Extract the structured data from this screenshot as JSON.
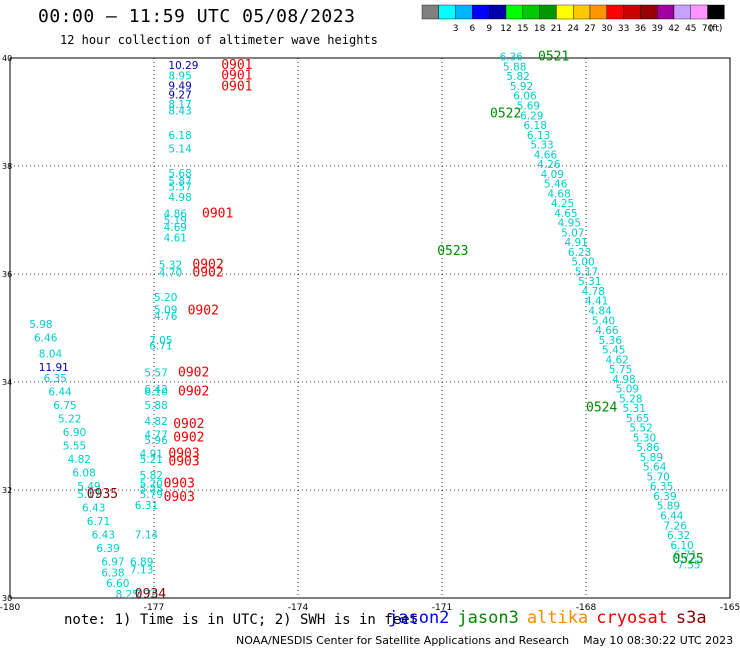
{
  "header": {
    "title": "00:00 — 11:59 UTC 05/08/2023",
    "subtitle": "12 hour collection of altimeter wave heights"
  },
  "colorbar": {
    "unit": "(ft)",
    "steps": [
      {
        "color": "#808080",
        "label": ""
      },
      {
        "color": "#00ffff",
        "label": "3"
      },
      {
        "color": "#00b4ff",
        "label": "6"
      },
      {
        "color": "#0000ff",
        "label": "9"
      },
      {
        "color": "#0000aa",
        "label": "12"
      },
      {
        "color": "#00ff00",
        "label": "15"
      },
      {
        "color": "#00c800",
        "label": "18"
      },
      {
        "color": "#009600",
        "label": "21"
      },
      {
        "color": "#ffff00",
        "label": "24"
      },
      {
        "color": "#ffc800",
        "label": "27"
      },
      {
        "color": "#ff9600",
        "label": "30"
      },
      {
        "color": "#ff0000",
        "label": "33"
      },
      {
        "color": "#c80000",
        "label": "36"
      },
      {
        "color": "#960000",
        "label": "39"
      },
      {
        "color": "#a000a0",
        "label": "42"
      },
      {
        "color": "#c8a0ff",
        "label": "45"
      },
      {
        "color": "#ff96ff",
        "label": "70"
      },
      {
        "color": "#000000",
        "label": ""
      }
    ]
  },
  "map": {
    "lon_range": [
      -180,
      -165
    ],
    "lat_range": [
      30,
      40
    ],
    "lon_ticks": [
      "-180",
      "-177",
      "-174",
      "-171",
      "-168",
      "-165"
    ],
    "lat_ticks": [
      "30",
      "32",
      "34",
      "36",
      "38",
      "40"
    ],
    "tracks": [
      {
        "satellite": "jason3",
        "color": "#00cccc",
        "lon": [
          -169.8,
          -169.4,
          -169.0,
          -168.6,
          -168.2,
          -167.8,
          -167.4,
          -167.0
        ],
        "values": [
          "6.36",
          "5.88",
          "5.82",
          "5.92",
          "6.06",
          "5.69",
          "6.29",
          "6.18",
          "6.13",
          "5.33",
          "4.66",
          "4.26",
          "4.09",
          "5.46",
          "4.68",
          "4.25",
          "4.65",
          "4.95",
          "5.07",
          "4.91",
          "6.23",
          "5.00",
          "5.17",
          "5.31",
          "4.78",
          "4.41",
          "4.84",
          "5.40",
          "4.66",
          "5.36",
          "5.45",
          "4.62",
          "5.75",
          "4.98",
          "5.09",
          "5.28",
          "5.31",
          "5.65",
          "5.52",
          "5.30",
          "5.86",
          "5.89",
          "5.64",
          "5.70",
          "6.35",
          "6.39",
          "5.89",
          "6.44",
          "7.26",
          "6.32",
          "6.10",
          "6.71",
          "7.55"
        ]
      }
    ],
    "track_labels": [
      {
        "text": "0521",
        "color": "#008800",
        "lon": -169.0,
        "lat": 39.95
      },
      {
        "text": "0522",
        "color": "#008800",
        "lon": -170.0,
        "lat": 38.9
      },
      {
        "text": "0523",
        "color": "#008800",
        "lon": -171.1,
        "lat": 36.35
      },
      {
        "text": "0524",
        "color": "#008800",
        "lon": -168.0,
        "lat": 33.45
      },
      {
        "text": "0525",
        "color": "#008800",
        "lon": -166.2,
        "lat": 30.65
      },
      {
        "text": "0901",
        "color": "#ee0000",
        "lon": -175.6,
        "lat": 39.8
      },
      {
        "text": "0901",
        "color": "#ee0000",
        "lon": -175.6,
        "lat": 39.6
      },
      {
        "text": "0901",
        "color": "#ee0000",
        "lon": -175.6,
        "lat": 39.4
      },
      {
        "text": "0901",
        "color": "#ee0000",
        "lon": -176.0,
        "lat": 37.05
      },
      {
        "text": "0902",
        "color": "#ee0000",
        "lon": -176.2,
        "lat": 36.1
      },
      {
        "text": "0902",
        "color": "#ee0000",
        "lon": -176.2,
        "lat": 35.95
      },
      {
        "text": "0902",
        "color": "#ee0000",
        "lon": -176.3,
        "lat": 35.25
      },
      {
        "text": "0902",
        "color": "#ee0000",
        "lon": -176.5,
        "lat": 34.1
      },
      {
        "text": "0902",
        "color": "#ee0000",
        "lon": -176.5,
        "lat": 33.75
      },
      {
        "text": "0902",
        "color": "#ee0000",
        "lon": -176.6,
        "lat": 33.15
      },
      {
        "text": "0902",
        "color": "#ee0000",
        "lon": -176.6,
        "lat": 32.9
      },
      {
        "text": "0903",
        "color": "#ee0000",
        "lon": -176.7,
        "lat": 32.6
      },
      {
        "text": "0903",
        "color": "#ee0000",
        "lon": -176.7,
        "lat": 32.45
      },
      {
        "text": "0903",
        "color": "#ee0000",
        "lon": -176.8,
        "lat": 32.05
      },
      {
        "text": "0903",
        "color": "#ee0000",
        "lon": -176.8,
        "lat": 31.8
      },
      {
        "text": "0935",
        "color": "#880000",
        "lon": -178.4,
        "lat": 31.85
      },
      {
        "text": "0934",
        "color": "#880000",
        "lon": -177.4,
        "lat": 30.0
      }
    ],
    "values": [
      {
        "text": "10.29",
        "color": "#0000aa",
        "lon": -176.7,
        "lat": 39.8
      },
      {
        "text": "8.95",
        "color": "#00cccc",
        "lon": -176.7,
        "lat": 39.6
      },
      {
        "text": "9.49",
        "color": "#0000aa",
        "lon": -176.7,
        "lat": 39.42
      },
      {
        "text": "9.27",
        "color": "#0000aa",
        "lon": -176.7,
        "lat": 39.25
      },
      {
        "text": "8.17",
        "color": "#00cccc",
        "lon": -176.7,
        "lat": 39.07
      },
      {
        "text": "8.43",
        "color": "#00cccc",
        "lon": -176.7,
        "lat": 38.95
      },
      {
        "text": "6.18",
        "color": "#00cccc",
        "lon": -176.7,
        "lat": 38.5
      },
      {
        "text": "5.14",
        "color": "#00cccc",
        "lon": -176.7,
        "lat": 38.25
      },
      {
        "text": "5.68",
        "color": "#00cccc",
        "lon": -176.7,
        "lat": 37.8
      },
      {
        "text": "5.87",
        "color": "#00cccc",
        "lon": -176.7,
        "lat": 37.65
      },
      {
        "text": "5.57",
        "color": "#00cccc",
        "lon": -176.7,
        "lat": 37.55
      },
      {
        "text": "4.98",
        "color": "#00cccc",
        "lon": -176.7,
        "lat": 37.35
      },
      {
        "text": "4.86",
        "color": "#00cccc",
        "lon": -176.8,
        "lat": 37.05
      },
      {
        "text": "5.19",
        "color": "#00cccc",
        "lon": -176.8,
        "lat": 36.93
      },
      {
        "text": "4.69",
        "color": "#00cccc",
        "lon": -176.8,
        "lat": 36.8
      },
      {
        "text": "4.61",
        "color": "#00cccc",
        "lon": -176.8,
        "lat": 36.6
      },
      {
        "text": "5.32",
        "color": "#00cccc",
        "lon": -176.9,
        "lat": 36.1
      },
      {
        "text": "4.70",
        "color": "#00cccc",
        "lon": -176.9,
        "lat": 35.95
      },
      {
        "text": "5.20",
        "color": "#00cccc",
        "lon": -177.0,
        "lat": 35.5
      },
      {
        "text": "5.09",
        "color": "#00cccc",
        "lon": -177.0,
        "lat": 35.27
      },
      {
        "text": "4.76",
        "color": "#00cccc",
        "lon": -177.0,
        "lat": 35.15
      },
      {
        "text": "7.05",
        "color": "#00cccc",
        "lon": -177.1,
        "lat": 34.7
      },
      {
        "text": "6.71",
        "color": "#00cccc",
        "lon": -177.1,
        "lat": 34.6
      },
      {
        "text": "5.57",
        "color": "#00cccc",
        "lon": -177.2,
        "lat": 34.1
      },
      {
        "text": "6.42",
        "color": "#00cccc",
        "lon": -177.2,
        "lat": 33.8
      },
      {
        "text": "6.10",
        "color": "#00cccc",
        "lon": -177.2,
        "lat": 33.75
      },
      {
        "text": "5.88",
        "color": "#00cccc",
        "lon": -177.2,
        "lat": 33.5
      },
      {
        "text": "4.82",
        "color": "#00cccc",
        "lon": -177.2,
        "lat": 33.2
      },
      {
        "text": "4.77",
        "color": "#00cccc",
        "lon": -177.2,
        "lat": 32.95
      },
      {
        "text": "5.96",
        "color": "#00cccc",
        "lon": -177.2,
        "lat": 32.85
      },
      {
        "text": "4.91",
        "color": "#00cccc",
        "lon": -177.3,
        "lat": 32.6
      },
      {
        "text": "5.21",
        "color": "#00cccc",
        "lon": -177.3,
        "lat": 32.5
      },
      {
        "text": "5.82",
        "color": "#00cccc",
        "lon": -177.3,
        "lat": 32.2
      },
      {
        "text": "5.20",
        "color": "#00cccc",
        "lon": -177.3,
        "lat": 32.05
      },
      {
        "text": "5.25",
        "color": "#00cccc",
        "lon": -177.3,
        "lat": 31.95
      },
      {
        "text": "5.79",
        "color": "#00cccc",
        "lon": -177.3,
        "lat": 31.85
      },
      {
        "text": "6.31",
        "color": "#00cccc",
        "lon": -177.4,
        "lat": 31.65
      },
      {
        "text": "7.14",
        "color": "#00cccc",
        "lon": -177.4,
        "lat": 31.1
      },
      {
        "text": "6.89",
        "color": "#00cccc",
        "lon": -177.5,
        "lat": 30.6
      },
      {
        "text": "7.13",
        "color": "#00cccc",
        "lon": -177.5,
        "lat": 30.45
      },
      {
        "text": "5.98",
        "color": "#00cccc",
        "lon": -179.6,
        "lat": 35.0
      },
      {
        "text": "6.46",
        "color": "#00cccc",
        "lon": -179.5,
        "lat": 34.75
      },
      {
        "text": "8.04",
        "color": "#00cccc",
        "lon": -179.4,
        "lat": 34.45
      },
      {
        "text": "11.91",
        "color": "#0000aa",
        "lon": -179.4,
        "lat": 34.2
      },
      {
        "text": "6.35",
        "color": "#00cccc",
        "lon": -179.3,
        "lat": 34.0
      },
      {
        "text": "6.44",
        "color": "#00cccc",
        "lon": -179.2,
        "lat": 33.75
      },
      {
        "text": "6.75",
        "color": "#00cccc",
        "lon": -179.1,
        "lat": 33.5
      },
      {
        "text": "5.22",
        "color": "#00cccc",
        "lon": -179.0,
        "lat": 33.25
      },
      {
        "text": "6.90",
        "color": "#00cccc",
        "lon": -178.9,
        "lat": 33.0
      },
      {
        "text": "5.55",
        "color": "#00cccc",
        "lon": -178.9,
        "lat": 32.75
      },
      {
        "text": "4.82",
        "color": "#00cccc",
        "lon": -178.8,
        "lat": 32.5
      },
      {
        "text": "6.08",
        "color": "#00cccc",
        "lon": -178.7,
        "lat": 32.25
      },
      {
        "text": "5.49",
        "color": "#00cccc",
        "lon": -178.6,
        "lat": 32.0
      },
      {
        "text": "5.17",
        "color": "#00cccc",
        "lon": -178.6,
        "lat": 31.85
      },
      {
        "text": "6.43",
        "color": "#00cccc",
        "lon": -178.5,
        "lat": 31.6
      },
      {
        "text": "6.71",
        "color": "#00cccc",
        "lon": -178.4,
        "lat": 31.35
      },
      {
        "text": "6.43",
        "color": "#00cccc",
        "lon": -178.3,
        "lat": 31.1
      },
      {
        "text": "6.39",
        "color": "#00cccc",
        "lon": -178.2,
        "lat": 30.85
      },
      {
        "text": "6.97",
        "color": "#00cccc",
        "lon": -178.1,
        "lat": 30.6
      },
      {
        "text": "6.38",
        "color": "#00cccc",
        "lon": -178.1,
        "lat": 30.4
      },
      {
        "text": "6.60",
        "color": "#00cccc",
        "lon": -178.0,
        "lat": 30.2
      },
      {
        "text": "8.25",
        "color": "#00cccc",
        "lon": -177.8,
        "lat": 30.0
      },
      {
        "text": "7.70",
        "color": "#00cccc",
        "lon": -177.4,
        "lat": 30.0
      }
    ]
  },
  "footer": {
    "note": "note:  1) Time is in UTC; 2) SWH is in feet",
    "legend": [
      {
        "name": "jason2",
        "color": "#0000ee"
      },
      {
        "name": "jason3",
        "color": "#008800"
      },
      {
        "name": "altika",
        "color": "#ff8800"
      },
      {
        "name": "cryosat",
        "color": "#ee0000"
      },
      {
        "name": "s3a",
        "color": "#880000"
      }
    ],
    "credit": "NOAA/NESDIS Center for Satellite Applications and Research",
    "date": "May 10 08:30:22 UTC 2023"
  }
}
